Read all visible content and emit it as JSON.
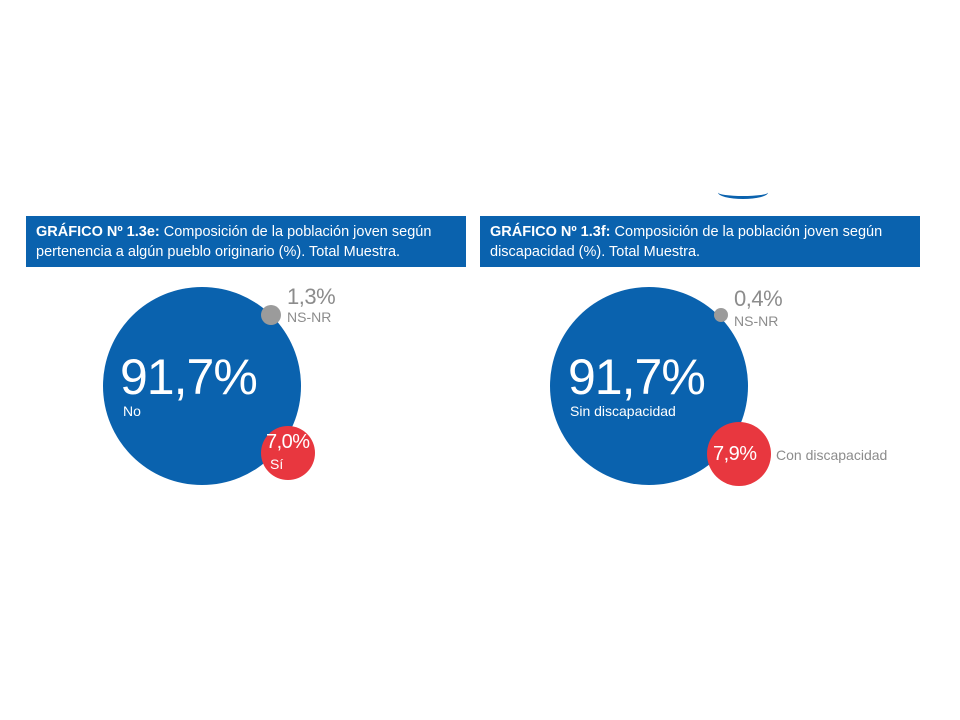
{
  "chart_data": [
    {
      "type": "pie",
      "title_label": "GRÁFICO Nº 1.3e:",
      "title_line1": "Composición de la población joven según",
      "title_line2": "pertenencia a algún pueblo originario (%). Total Muestra.",
      "slices": [
        {
          "label": "No",
          "value": 91.7,
          "display": "91,7%",
          "color": "#0a62ae"
        },
        {
          "label": "Sí",
          "value": 7.0,
          "display": "7,0%",
          "color": "#e8373f"
        },
        {
          "label": "NS-NR",
          "value": 1.3,
          "display": "1,3%",
          "color": "#9b9b9b"
        }
      ]
    },
    {
      "type": "pie",
      "title_label": "GRÁFICO Nº 1.3f:",
      "title_line1": "Composición de la población joven según",
      "title_line2": "discapacidad (%). Total Muestra.",
      "slices": [
        {
          "label": "Sin discapacidad",
          "value": 91.7,
          "display": "91,7%",
          "color": "#0a62ae"
        },
        {
          "label": "Con discapacidad",
          "value": 7.9,
          "display": "7,9%",
          "color": "#e8373f"
        },
        {
          "label": "NS-NR",
          "value": 0.4,
          "display": "0,4%",
          "color": "#9b9b9b"
        }
      ]
    }
  ]
}
